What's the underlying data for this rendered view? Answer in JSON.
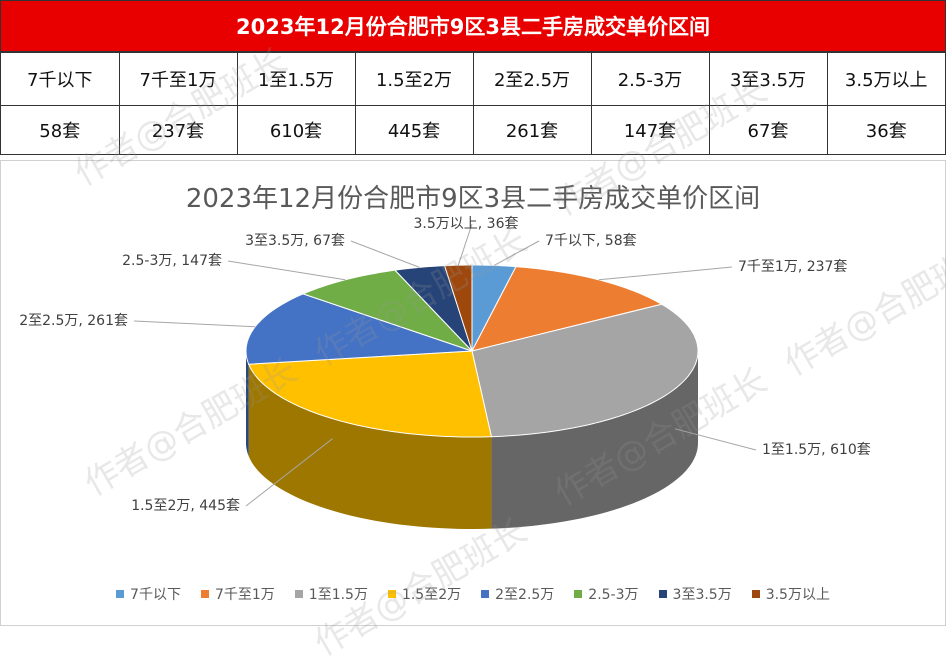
{
  "summary": {
    "title": "2023年12月份合肥市9区3县二手房成交单价区间",
    "ranges": [
      "7千以下",
      "7千至1万",
      "1至1.5万",
      "1.5至2万",
      "2至2.5万",
      "2.5-3万",
      "3至3.5万",
      "3.5万以上"
    ],
    "counts": [
      "58套",
      "237套",
      "610套",
      "445套",
      "261套",
      "147套",
      "67套",
      "36套"
    ]
  },
  "watermark": "作者@合肥班长",
  "chart_data": {
    "type": "pie",
    "title": "2023年12月份合肥市9区3县二手房成交单价区间",
    "categories": [
      "7千以下",
      "7千至1万",
      "1至1.5万",
      "1.5至2万",
      "2至2.5万",
      "2.5-3万",
      "3至3.5万",
      "3.5万以上"
    ],
    "values": [
      58,
      237,
      610,
      445,
      261,
      147,
      67,
      36
    ],
    "unit": "套",
    "colors": [
      "#5b9bd5",
      "#ed7d31",
      "#a5a5a5",
      "#ffc000",
      "#4472c4",
      "#70ad47",
      "#264478",
      "#9e480e"
    ],
    "legend_position": "bottom",
    "data_labels": [
      "7千以下, 58套",
      "7千至1万, 237套",
      "1至1.5万, 610套",
      "1.5至2万, 445套",
      "2至2.5万, 261套",
      "2.5-3万, 147套",
      "3至3.5万, 67套",
      "3.5万以上, 36套"
    ]
  }
}
